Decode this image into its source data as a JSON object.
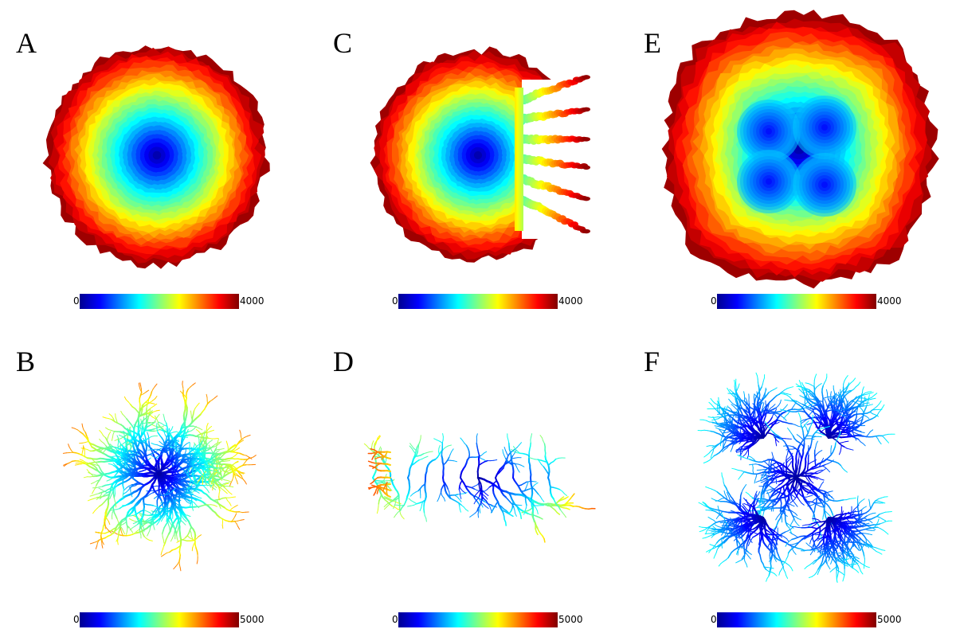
{
  "colormap": [
    "#00008f",
    "#0000ff",
    "#0080ff",
    "#00ffff",
    "#80ff80",
    "#ffff00",
    "#ff8000",
    "#ff0000",
    "#800000"
  ],
  "panels": [
    {
      "id": "A",
      "letter": "A",
      "cb_min": "0",
      "cb_max": "4000",
      "kind": "disk"
    },
    {
      "id": "B",
      "letter": "B",
      "cb_min": "0",
      "cb_max": "5000",
      "kind": "dendrite"
    },
    {
      "id": "C",
      "letter": "C",
      "cb_min": "0",
      "cb_max": "4000",
      "kind": "disk-fingers"
    },
    {
      "id": "D",
      "letter": "D",
      "cb_min": "0",
      "cb_max": "5000",
      "kind": "fish"
    },
    {
      "id": "E",
      "letter": "E",
      "cb_min": "0",
      "cb_max": "4000",
      "kind": "square-4"
    },
    {
      "id": "F",
      "letter": "F",
      "cb_min": "0",
      "cb_max": "5000",
      "kind": "dendrite-5"
    }
  ]
}
